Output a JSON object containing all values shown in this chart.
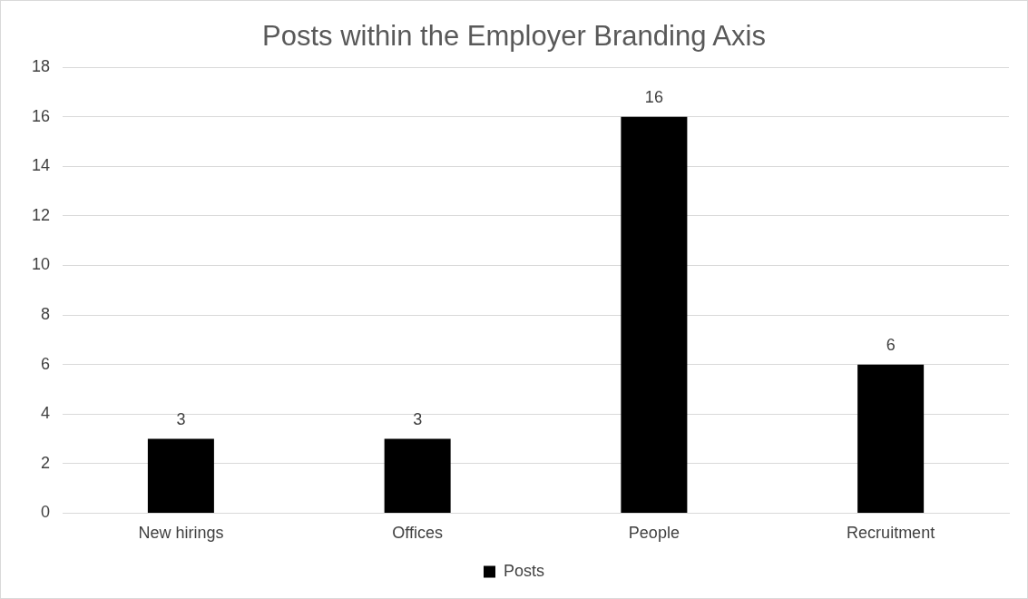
{
  "chart_data": {
    "type": "bar",
    "title": "Posts within the Employer Branding Axis",
    "categories": [
      "New hirings",
      "Offices",
      "People",
      "Recruitment"
    ],
    "series": [
      {
        "name": "Posts",
        "color": "#000000",
        "values": [
          3,
          3,
          16,
          6
        ]
      }
    ],
    "ylim": [
      0,
      18
    ],
    "yticks": [
      0,
      2,
      4,
      6,
      8,
      10,
      12,
      14,
      16,
      18
    ],
    "grid": "y",
    "legend": "bottom",
    "data_labels": true
  }
}
